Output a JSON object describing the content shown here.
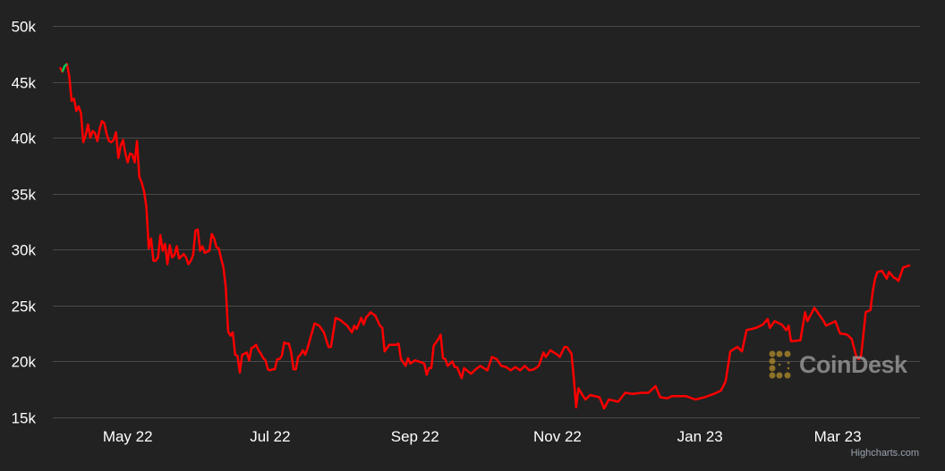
{
  "chart_data": {
    "type": "line",
    "title": "",
    "xlabel": "",
    "ylabel": "",
    "ylim": [
      15000,
      50000
    ],
    "y_ticks": [
      15000,
      20000,
      25000,
      30000,
      35000,
      40000,
      45000,
      50000
    ],
    "y_tick_labels": [
      "15k",
      "20k",
      "25k",
      "30k",
      "35k",
      "40k",
      "45k",
      "50k"
    ],
    "x_range": [
      "2022-04-02",
      "2023-04-01"
    ],
    "x_ticks": [
      "2022-05-01",
      "2022-07-01",
      "2022-09-01",
      "2022-11-01",
      "2023-01-01",
      "2023-03-01"
    ],
    "x_tick_labels": [
      "May 22",
      "Jul 22",
      "Sep 22",
      "Nov 22",
      "Jan 23",
      "Mar 23"
    ],
    "grid": "horizontal",
    "legend": "none",
    "colors": {
      "background": "#222222",
      "line": "#ff0000",
      "highlight": "#00c853",
      "grid": "#4a4a4a",
      "text": "#ffffff"
    },
    "highlight_range": [
      "2022-04-03",
      "2022-04-05"
    ],
    "series": [
      {
        "x": [
          "2022-04-02",
          "2022-04-03",
          "2022-04-04",
          "2022-04-05",
          "2022-04-06",
          "2022-04-07",
          "2022-04-08",
          "2022-04-09",
          "2022-04-10",
          "2022-04-11",
          "2022-04-12",
          "2022-04-13",
          "2022-04-14",
          "2022-04-15",
          "2022-04-16",
          "2022-04-17",
          "2022-04-18",
          "2022-04-19",
          "2022-04-20",
          "2022-04-21",
          "2022-04-22",
          "2022-04-23",
          "2022-04-24",
          "2022-04-25",
          "2022-04-26",
          "2022-04-27",
          "2022-04-28",
          "2022-04-29",
          "2022-04-30",
          "2022-05-01",
          "2022-05-02",
          "2022-05-03",
          "2022-05-04",
          "2022-05-05",
          "2022-05-06",
          "2022-05-07",
          "2022-05-08",
          "2022-05-09",
          "2022-05-10",
          "2022-05-11",
          "2022-05-12",
          "2022-05-13",
          "2022-05-14",
          "2022-05-15",
          "2022-05-16",
          "2022-05-17",
          "2022-05-18",
          "2022-05-19",
          "2022-05-20",
          "2022-05-21",
          "2022-05-22",
          "2022-05-23",
          "2022-05-24",
          "2022-05-25",
          "2022-05-26",
          "2022-05-27",
          "2022-05-28",
          "2022-05-29",
          "2022-05-30",
          "2022-05-31",
          "2022-06-01",
          "2022-06-02",
          "2022-06-03",
          "2022-06-04",
          "2022-06-05",
          "2022-06-06",
          "2022-06-07",
          "2022-06-08",
          "2022-06-09",
          "2022-06-10",
          "2022-06-11",
          "2022-06-12",
          "2022-06-13",
          "2022-06-14",
          "2022-06-15",
          "2022-06-16",
          "2022-06-17",
          "2022-06-18",
          "2022-06-19",
          "2022-06-20",
          "2022-06-21",
          "2022-06-22",
          "2022-06-23",
          "2022-06-24",
          "2022-06-25",
          "2022-06-26",
          "2022-06-27",
          "2022-06-28",
          "2022-06-29",
          "2022-06-30",
          "2022-07-01",
          "2022-07-02",
          "2022-07-03",
          "2022-07-04",
          "2022-07-05",
          "2022-07-06",
          "2022-07-07",
          "2022-07-08",
          "2022-07-09",
          "2022-07-10",
          "2022-07-11",
          "2022-07-12",
          "2022-07-13",
          "2022-07-14",
          "2022-07-15",
          "2022-07-16",
          "2022-07-17",
          "2022-07-20",
          "2022-07-22",
          "2022-07-24",
          "2022-07-26",
          "2022-07-27",
          "2022-07-29",
          "2022-07-31",
          "2022-08-03",
          "2022-08-05",
          "2022-08-06",
          "2022-08-07",
          "2022-08-09",
          "2022-08-10",
          "2022-08-11",
          "2022-08-13",
          "2022-08-15",
          "2022-08-17",
          "2022-08-18",
          "2022-08-19",
          "2022-08-21",
          "2022-08-24",
          "2022-08-25",
          "2022-08-26",
          "2022-08-28",
          "2022-08-29",
          "2022-08-30",
          "2022-09-01",
          "2022-09-04",
          "2022-09-05",
          "2022-09-06",
          "2022-09-07",
          "2022-09-08",
          "2022-09-09",
          "2022-09-11",
          "2022-09-12",
          "2022-09-13",
          "2022-09-14",
          "2022-09-15",
          "2022-09-17",
          "2022-09-18",
          "2022-09-19",
          "2022-09-21",
          "2022-09-22",
          "2022-09-25",
          "2022-09-27",
          "2022-09-29",
          "2022-10-02",
          "2022-10-04",
          "2022-10-06",
          "2022-10-08",
          "2022-10-10",
          "2022-10-12",
          "2022-10-14",
          "2022-10-16",
          "2022-10-18",
          "2022-10-20",
          "2022-10-22",
          "2022-10-24",
          "2022-10-26",
          "2022-10-27",
          "2022-10-29",
          "2022-11-01",
          "2022-11-02",
          "2022-11-04",
          "2022-11-05",
          "2022-11-07",
          "2022-11-08",
          "2022-11-09",
          "2022-11-10",
          "2022-11-12",
          "2022-11-13",
          "2022-11-15",
          "2022-11-19",
          "2022-11-21",
          "2022-11-23",
          "2022-11-27",
          "2022-11-30",
          "2022-12-03",
          "2022-12-07",
          "2022-12-10",
          "2022-12-13",
          "2022-12-15",
          "2022-12-18",
          "2022-12-20",
          "2022-12-26",
          "2022-12-30",
          "2023-01-03",
          "2023-01-07",
          "2023-01-10",
          "2023-01-12",
          "2023-01-14",
          "2023-01-17",
          "2023-01-19",
          "2023-01-21",
          "2023-01-25",
          "2023-01-28",
          "2023-01-30",
          "2023-01-31",
          "2023-02-02",
          "2023-02-05",
          "2023-02-07",
          "2023-02-08",
          "2023-02-09",
          "2023-02-13",
          "2023-02-15",
          "2023-02-16",
          "2023-02-19",
          "2023-02-21",
          "2023-02-23",
          "2023-02-24",
          "2023-02-28",
          "2023-03-02",
          "2023-03-05",
          "2023-03-07",
          "2023-03-09",
          "2023-03-10",
          "2023-03-11",
          "2023-03-12",
          "2023-03-13",
          "2023-03-15",
          "2023-03-16",
          "2023-03-17",
          "2023-03-18",
          "2023-03-20",
          "2023-03-22",
          "2023-03-23",
          "2023-03-25",
          "2023-03-26",
          "2023-03-27",
          "2023-03-29",
          "2023-04-01"
        ],
        "values": [
          46300,
          45900,
          46400,
          46600,
          45500,
          43300,
          43500,
          42400,
          42800,
          42200,
          39600,
          40200,
          41200,
          40000,
          40600,
          40400,
          39700,
          40800,
          41500,
          41300,
          40300,
          39700,
          39600,
          39800,
          40500,
          38200,
          39300,
          39800,
          38600,
          37800,
          38600,
          38500,
          37800,
          39700,
          36500,
          36000,
          35200,
          33800,
          30100,
          31000,
          29000,
          29000,
          29300,
          31300,
          29900,
          30500,
          28700,
          30400,
          29300,
          29500,
          30300,
          29200,
          29400,
          29600,
          29300,
          28700,
          29000,
          29500,
          31700,
          31800,
          29900,
          30300,
          29700,
          29800,
          29900,
          31400,
          31000,
          30200,
          30100,
          29200,
          28400,
          26600,
          22700,
          22300,
          22600,
          20600,
          20500,
          19000,
          20600,
          20700,
          20800,
          20100,
          21200,
          21300,
          21500,
          21000,
          20700,
          20300,
          20100,
          19300,
          19200,
          19300,
          19300,
          20200,
          20200,
          20500,
          21700,
          21600,
          21600,
          20800,
          19300,
          19300,
          20400,
          20600,
          21000,
          20600,
          21200,
          23400,
          23200,
          22600,
          21300,
          21300,
          23900,
          23700,
          23200,
          22600,
          23200,
          22900,
          23900,
          23300,
          23900,
          24400,
          24100,
          23200,
          23000,
          20900,
          21500,
          21500,
          21600,
          20200,
          19600,
          20300,
          19800,
          20100,
          19900,
          19800,
          18800,
          19400,
          19400,
          21400,
          22000,
          22400,
          20300,
          20200,
          19600,
          20000,
          19500,
          19500,
          18500,
          19400,
          18900,
          19300,
          19600,
          19200,
          20400,
          20200,
          19600,
          19500,
          19200,
          19500,
          19200,
          19600,
          19200,
          19300,
          19600,
          20800,
          20400,
          21000,
          20600,
          20400,
          21300,
          21300,
          20700,
          18500,
          15900,
          17600,
          16900,
          16600,
          17000,
          16800,
          15800,
          16600,
          16400,
          17200,
          17100,
          17200,
          17200,
          17800,
          16800,
          16700,
          16900,
          16900,
          16600,
          16800,
          17100,
          17400,
          18200,
          20900,
          21300,
          20900,
          22800,
          23000,
          23300,
          23800,
          23000,
          23600,
          23300,
          22800,
          23200,
          21800,
          21900,
          24400,
          23600,
          24800,
          24200,
          23600,
          23200,
          23600,
          22500,
          22400,
          22000,
          20400,
          20200,
          20500,
          22400,
          24400,
          24600,
          26300,
          27400,
          28000,
          28100,
          27400,
          28000,
          27500,
          27400,
          27200,
          28400,
          28600
        ]
      }
    ]
  },
  "watermark": {
    "text": "CoinDesk",
    "icon": "coindesk-logo-icon",
    "icon_color": "#a8862a"
  },
  "credits": {
    "label": "Highcharts.com"
  }
}
